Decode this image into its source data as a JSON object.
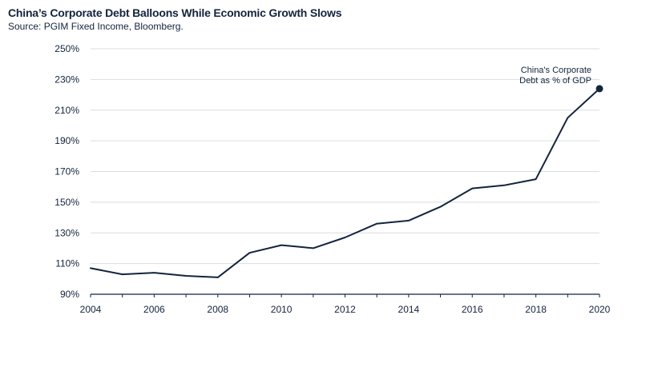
{
  "chart_data": {
    "type": "line",
    "title": "China’s Corporate Debt Balloons While Economic Growth Slows",
    "subtitle": "Source: PGIM Fixed Income, Bloomberg.",
    "xlabel": "",
    "ylabel": "",
    "x": [
      2004,
      2005,
      2006,
      2007,
      2008,
      2009,
      2010,
      2011,
      2012,
      2013,
      2014,
      2015,
      2016,
      2017,
      2018,
      2019,
      2020
    ],
    "xlim": [
      2004,
      2020
    ],
    "ylim": [
      90,
      250
    ],
    "xticks": [
      "2004",
      "2006",
      "2008",
      "2010",
      "2012",
      "2014",
      "2016",
      "2018",
      "2020"
    ],
    "yticks": [
      "90%",
      "110%",
      "130%",
      "150%",
      "170%",
      "190%",
      "210%",
      "230%",
      "250%"
    ],
    "grid": "horizontal",
    "series": [
      {
        "name": "China's Corporate Debt as % of GDP",
        "values": [
          107,
          103,
          104,
          102,
          101,
          117,
          122,
          120,
          127,
          136,
          138,
          147,
          159,
          161,
          165,
          205,
          224
        ],
        "color": "#13243d"
      }
    ],
    "annotation": {
      "lines": [
        "China's Corporate",
        "Debt as % of GDP"
      ]
    }
  }
}
